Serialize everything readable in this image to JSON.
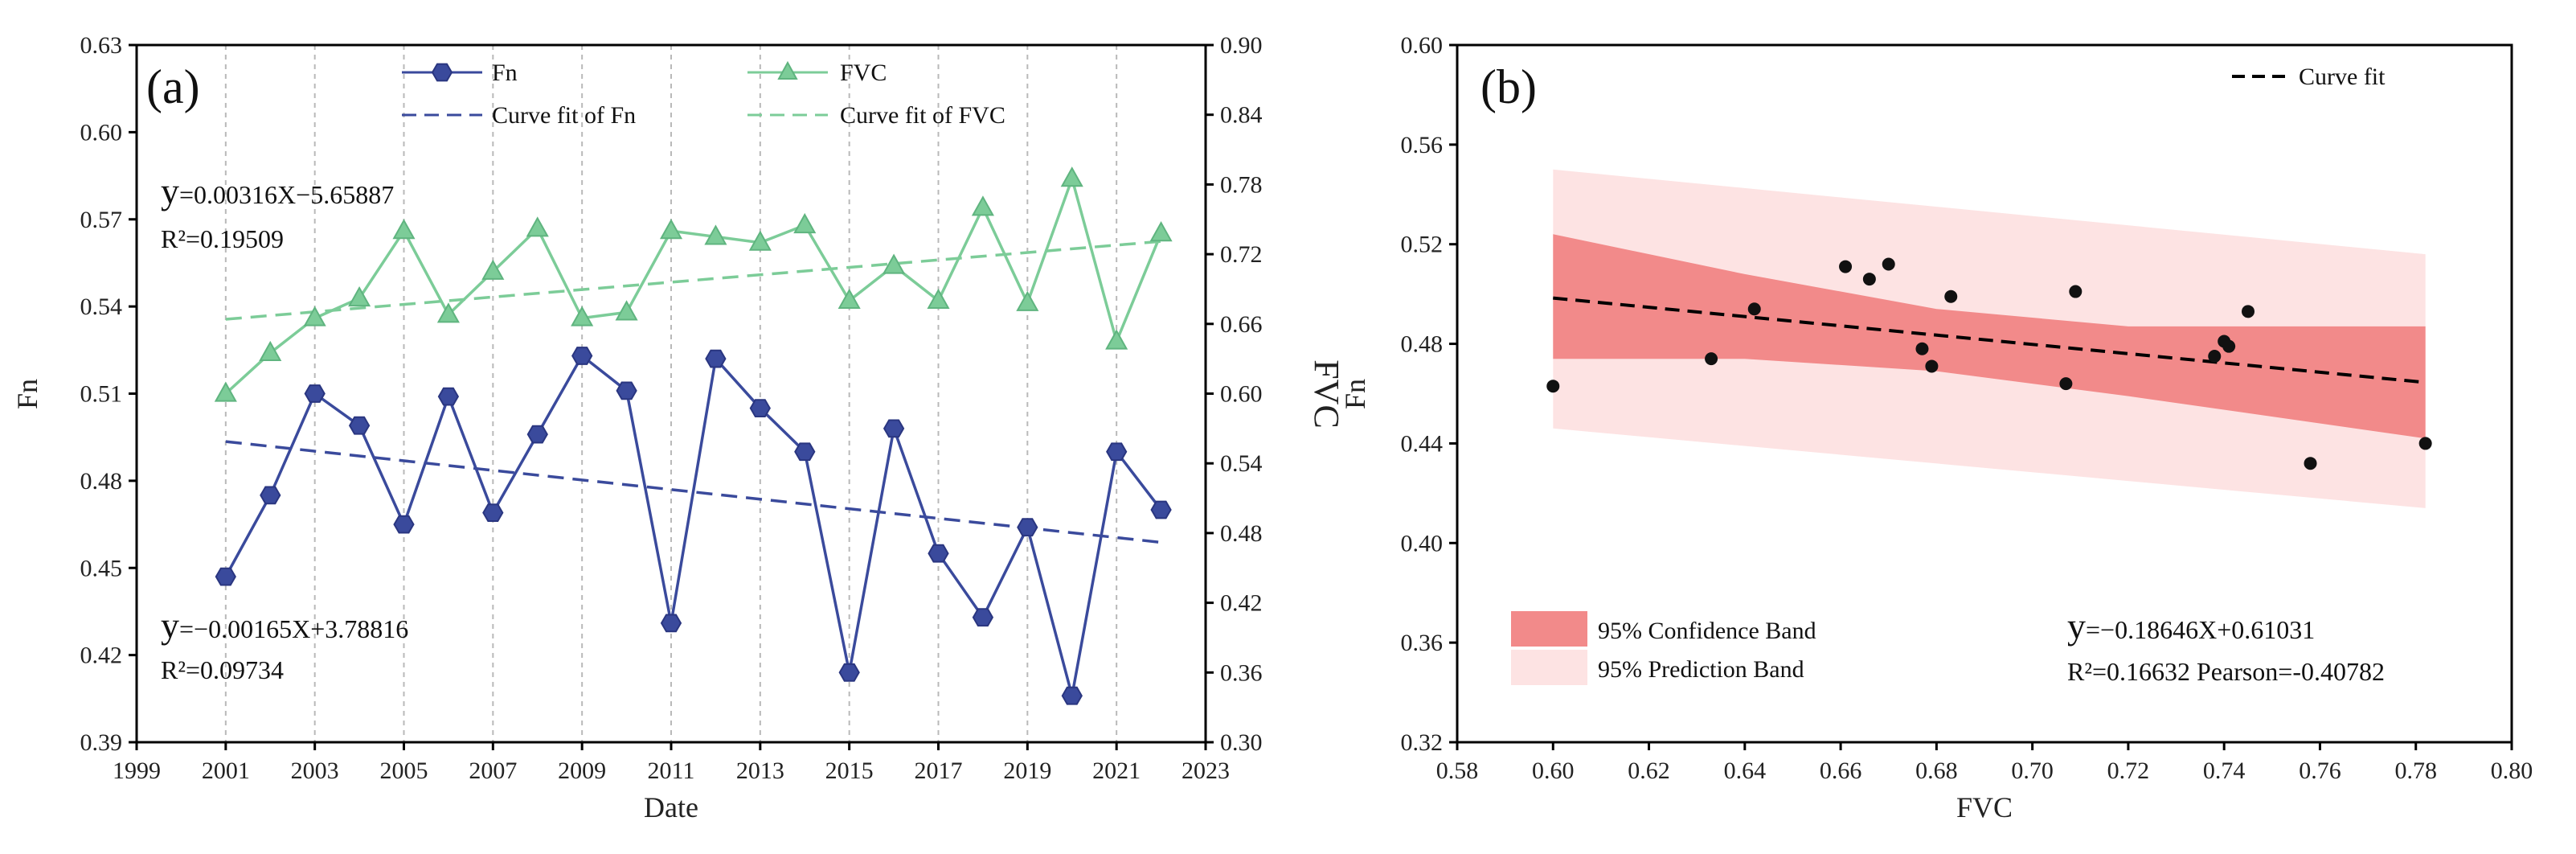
{
  "chart_data": [
    {
      "panel": "(a)",
      "type": "line",
      "xlabel": "Date",
      "ylabel_left": "Fn",
      "ylabel_right": "FVC",
      "xlim": [
        1999,
        2023
      ],
      "x_ticks": [
        1999,
        2001,
        2003,
        2005,
        2007,
        2009,
        2011,
        2013,
        2015,
        2017,
        2019,
        2021,
        2023
      ],
      "ylim_left": [
        0.39,
        0.63
      ],
      "y_ticks_left": [
        "0.39",
        "0.42",
        "0.45",
        "0.48",
        "0.51",
        "0.54",
        "0.57",
        "0.60",
        "0.63"
      ],
      "ylim_right": [
        0.3,
        0.9
      ],
      "y_ticks_right": [
        "0.30",
        "0.36",
        "0.42",
        "0.48",
        "0.54",
        "0.60",
        "0.66",
        "0.72",
        "0.78",
        "0.84",
        "0.90"
      ],
      "vertical_grid": "dashed at odd years",
      "x": [
        2001,
        2002,
        2003,
        2004,
        2005,
        2006,
        2007,
        2008,
        2009,
        2010,
        2011,
        2012,
        2013,
        2014,
        2015,
        2016,
        2017,
        2018,
        2019,
        2020,
        2021,
        2022
      ],
      "series": [
        {
          "name": "Fn",
          "axis": "left",
          "marker": "hexagon",
          "color": "#3a4a9c",
          "values": [
            0.447,
            0.475,
            0.51,
            0.499,
            0.465,
            0.509,
            0.469,
            0.496,
            0.523,
            0.511,
            0.431,
            0.522,
            0.505,
            0.49,
            0.414,
            0.498,
            0.455,
            0.433,
            0.464,
            0.406,
            0.49,
            0.47
          ]
        },
        {
          "name": "FVC",
          "axis": "right",
          "marker": "triangle",
          "color": "#7ccc98",
          "values": [
            0.6,
            0.635,
            0.665,
            0.682,
            0.74,
            0.668,
            0.705,
            0.742,
            0.665,
            0.67,
            0.74,
            0.735,
            0.73,
            0.745,
            0.68,
            0.71,
            0.68,
            0.76,
            0.678,
            0.785,
            0.645,
            0.738
          ]
        }
      ],
      "fits": [
        {
          "name": "Curve fit of Fn",
          "axis": "left",
          "color": "#3a4a9c",
          "x": [
            2001,
            2022
          ],
          "y": [
            0.4935,
            0.4588
          ]
        },
        {
          "name": "Curve fit of FVC",
          "axis": "right",
          "color": "#7ccc98",
          "x": [
            2001,
            2022
          ],
          "y": [
            0.664,
            0.731
          ]
        }
      ],
      "legend": [
        {
          "label": "Fn",
          "kind": "line-hex",
          "color": "#3a4a9c"
        },
        {
          "label": "FVC",
          "kind": "line-tri",
          "color": "#7ccc98"
        },
        {
          "label": "Curve fit of Fn",
          "kind": "dash",
          "color": "#3a4a9c"
        },
        {
          "label": "Curve fit of FVC",
          "kind": "dash",
          "color": "#7ccc98"
        }
      ],
      "legend_position": "top-center",
      "annotations": {
        "fvc_eq_y": "y",
        "fvc_eq_rest": "=0.00316X−5.65887",
        "fvc_r2": "R²=0.19509",
        "fn_eq_y": "y",
        "fn_eq_rest": "=−0.00165X+3.78816",
        "fn_r2": "R²=0.09734"
      }
    },
    {
      "panel": "(b)",
      "type": "scatter",
      "xlabel": "FVC",
      "ylabel": "Fn",
      "xlim": [
        0.58,
        0.8
      ],
      "x_ticks": [
        "0.58",
        "0.60",
        "0.62",
        "0.64",
        "0.66",
        "0.68",
        "0.70",
        "0.72",
        "0.74",
        "0.76",
        "0.78",
        "0.80"
      ],
      "ylim": [
        0.32,
        0.6
      ],
      "y_ticks": [
        "0.32",
        "0.36",
        "0.40",
        "0.44",
        "0.48",
        "0.52",
        "0.56",
        "0.60"
      ],
      "points": {
        "x": [
          0.6,
          0.633,
          0.642,
          0.661,
          0.666,
          0.67,
          0.677,
          0.679,
          0.683,
          0.707,
          0.709,
          0.738,
          0.74,
          0.741,
          0.745,
          0.758,
          0.782
        ],
        "y": [
          0.463,
          0.474,
          0.494,
          0.511,
          0.506,
          0.512,
          0.478,
          0.471,
          0.499,
          0.464,
          0.501,
          0.475,
          0.481,
          0.479,
          0.493,
          0.432,
          0.44
        ]
      },
      "fit": {
        "name": "Curve fit",
        "x": [
          0.6,
          0.782
        ],
        "y": [
          0.4984,
          0.4645
        ]
      },
      "confidence_band": {
        "x": [
          0.6,
          0.64,
          0.68,
          0.72,
          0.782
        ],
        "upper": [
          0.524,
          0.508,
          0.494,
          0.487,
          0.487
        ],
        "lower": [
          0.474,
          0.474,
          0.469,
          0.459,
          0.442
        ]
      },
      "prediction_band": {
        "x": [
          0.6,
          0.782
        ],
        "upper": [
          0.55,
          0.516
        ],
        "lower": [
          0.446,
          0.414
        ]
      },
      "legend": [
        {
          "label": "Curve fit",
          "kind": "dash",
          "color": "#000000"
        },
        {
          "label": "95% Confidence Band",
          "kind": "box",
          "color": "#f28a8a"
        },
        {
          "label": "95% Prediction Band",
          "kind": "box",
          "color": "#fde3e3"
        }
      ],
      "annotations": {
        "eq_y": "y",
        "eq_rest": "=−0.18646X+0.61031",
        "r2_pearson": "R²=0.16632  Pearson=-0.40782"
      }
    }
  ]
}
